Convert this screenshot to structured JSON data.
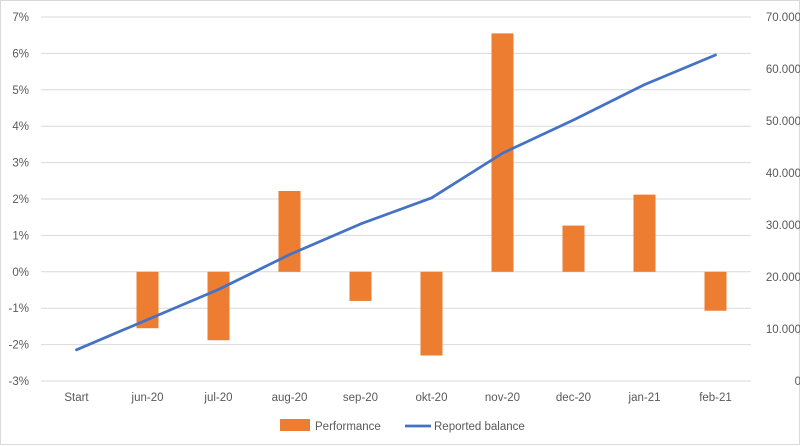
{
  "chart_data": {
    "type": "bar+line",
    "categories": [
      "Start",
      "jun-20",
      "jul-20",
      "aug-20",
      "sep-20",
      "okt-20",
      "nov-20",
      "dec-20",
      "jan-21",
      "feb-21"
    ],
    "series": [
      {
        "name": "Performance",
        "type": "bar",
        "axis": "left",
        "color": "#ED7D31",
        "values": [
          null,
          -1.55,
          -1.88,
          2.22,
          -0.8,
          -2.3,
          6.55,
          1.27,
          2.12,
          -1.07
        ]
      },
      {
        "name": "Reported balance",
        "type": "line",
        "axis": "right",
        "color": "#4472C4",
        "values": [
          6000,
          11800,
          17600,
          24300,
          30200,
          35200,
          43800,
          50200,
          57000,
          62700
        ]
      }
    ],
    "left_axis": {
      "ylim": [
        -3,
        7
      ],
      "ticks": [
        -3,
        -2,
        -1,
        0,
        1,
        2,
        3,
        4,
        5,
        6,
        7
      ],
      "tick_labels": [
        "-3%",
        "-2%",
        "-1%",
        "0%",
        "1%",
        "2%",
        "3%",
        "4%",
        "5%",
        "6%",
        "7%"
      ]
    },
    "right_axis": {
      "ylim": [
        0,
        70000
      ],
      "ticks": [
        0,
        10000,
        20000,
        30000,
        40000,
        50000,
        60000,
        70000
      ],
      "tick_labels": [
        "0",
        "10.000",
        "20.000",
        "30.000",
        "40.000",
        "50.000",
        "60.000",
        "70.000"
      ]
    },
    "grid": true,
    "legend_position": "bottom"
  }
}
